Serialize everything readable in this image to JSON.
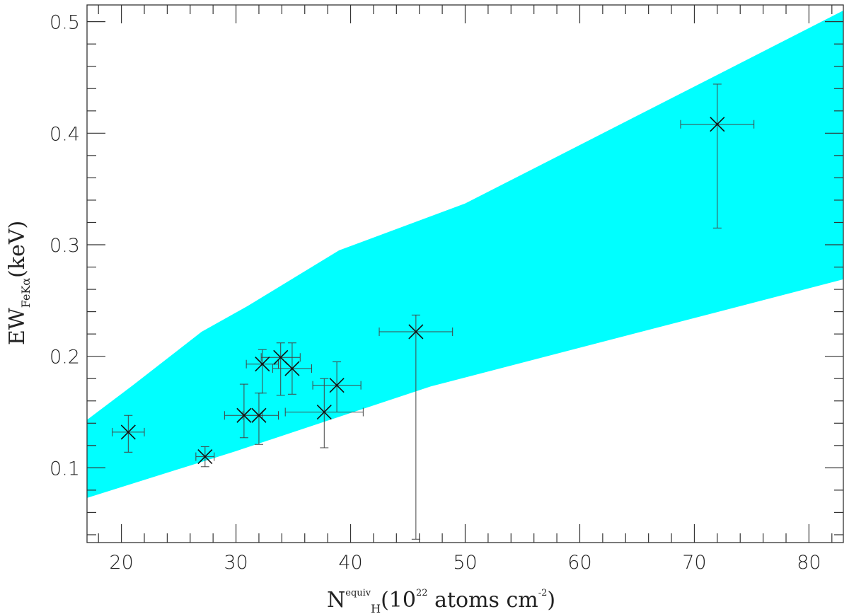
{
  "chart_data": {
    "type": "scatter",
    "title": "",
    "xlabel": {
      "main": "N",
      "sup": "equiv",
      "sub": "H",
      "paren_open": "(10",
      "exp": "22",
      "unit_mid": " atoms cm",
      "unit_exp": "-2",
      "paren_close": ")"
    },
    "ylabel": {
      "main": "EW",
      "sub": "FeKα",
      "unit": "(keV)"
    },
    "xlim": [
      17,
      83
    ],
    "ylim": [
      0.033,
      0.515
    ],
    "x_ticks": [
      20,
      30,
      40,
      50,
      60,
      70,
      80
    ],
    "x_tick_labels": [
      "20",
      "30",
      "40",
      "50",
      "60",
      "70",
      "80"
    ],
    "y_ticks": [
      0.1,
      0.2,
      0.3,
      0.4,
      0.5
    ],
    "y_tick_labels": [
      "0.1",
      "0.2",
      "0.3",
      "0.4",
      "0.5"
    ],
    "x_minor_step": 2,
    "y_minor_step": 0.02,
    "grid": false,
    "band": {
      "color": "#00ffff",
      "upper": [
        [
          17,
          0.143
        ],
        [
          21,
          0.174
        ],
        [
          27,
          0.222
        ],
        [
          31,
          0.245
        ],
        [
          39,
          0.295
        ],
        [
          50,
          0.337
        ],
        [
          83,
          0.51
        ]
      ],
      "lower": [
        [
          17,
          0.073
        ],
        [
          30,
          0.115
        ],
        [
          47,
          0.173
        ],
        [
          83,
          0.269
        ]
      ]
    },
    "points": [
      {
        "x": 20.6,
        "y": 0.132,
        "xerr_lo": 1.4,
        "xerr_hi": 1.4,
        "yerr_lo": 0.018,
        "yerr_hi": 0.015
      },
      {
        "x": 27.3,
        "y": 0.11,
        "xerr_lo": 0.8,
        "xerr_hi": 0.8,
        "yerr_lo": 0.009,
        "yerr_hi": 0.009
      },
      {
        "x": 30.7,
        "y": 0.147,
        "xerr_lo": 1.7,
        "xerr_hi": 1.6,
        "yerr_lo": 0.02,
        "yerr_hi": 0.028
      },
      {
        "x": 32.0,
        "y": 0.147,
        "xerr_lo": 1.4,
        "xerr_hi": 1.7,
        "yerr_lo": 0.026,
        "yerr_hi": 0.02
      },
      {
        "x": 32.3,
        "y": 0.193,
        "xerr_lo": 1.4,
        "xerr_hi": 1.4,
        "yerr_lo": 0.026,
        "yerr_hi": 0.013
      },
      {
        "x": 33.9,
        "y": 0.199,
        "xerr_lo": 1.7,
        "xerr_hi": 1.7,
        "yerr_lo": 0.034,
        "yerr_hi": 0.013
      },
      {
        "x": 34.9,
        "y": 0.189,
        "xerr_lo": 1.7,
        "xerr_hi": 1.7,
        "yerr_lo": 0.023,
        "yerr_hi": 0.023
      },
      {
        "x": 37.7,
        "y": 0.15,
        "xerr_lo": 3.4,
        "xerr_hi": 3.4,
        "yerr_lo": 0.032,
        "yerr_hi": 0.03
      },
      {
        "x": 38.8,
        "y": 0.174,
        "xerr_lo": 2.1,
        "xerr_hi": 2.1,
        "yerr_lo": 0.024,
        "yerr_hi": 0.021
      },
      {
        "x": 45.7,
        "y": 0.222,
        "xerr_lo": 3.2,
        "xerr_hi": 3.2,
        "yerr_lo": 0.186,
        "yerr_hi": 0.015
      },
      {
        "x": 72.0,
        "y": 0.408,
        "xerr_lo": 3.2,
        "xerr_hi": 3.2,
        "yerr_lo": 0.093,
        "yerr_hi": 0.036
      }
    ]
  }
}
